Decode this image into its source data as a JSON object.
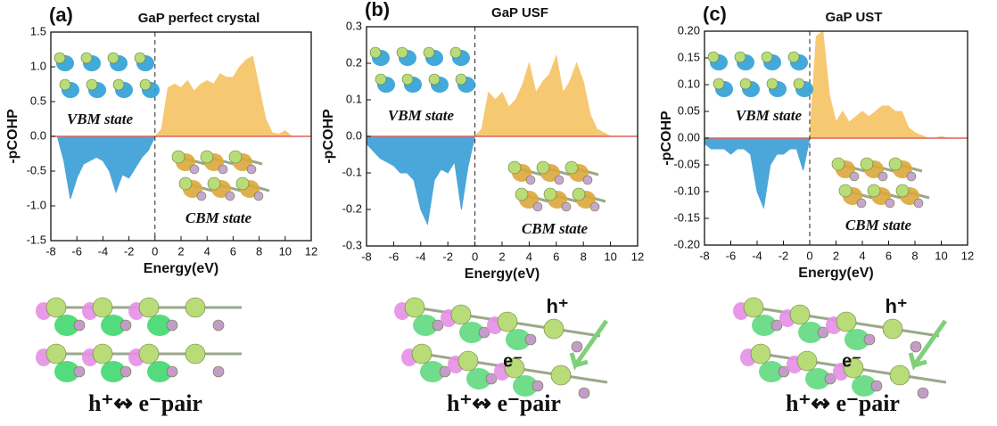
{
  "chart_data": [
    {
      "type": "area",
      "panel_label": "(a)",
      "title": "GaP perfect crystal",
      "xlabel": "Energy(eV)",
      "ylabel": "-pCOHP",
      "xlim": [
        -8,
        12
      ],
      "xticks": [
        -8,
        -6,
        -4,
        -2,
        0,
        2,
        4,
        6,
        8,
        10,
        12
      ],
      "ylim": [
        -1.5,
        1.5
      ],
      "yticks": [
        -1.5,
        {
          "value": -1,
          "label": "-1.0"
        },
        -0.5,
        {
          "value": 0,
          "label": "0.0"
        },
        0.5,
        {
          "value": 1,
          "label": "1.0"
        },
        1.5
      ],
      "x": [
        -8,
        -7.5,
        -7,
        -6.5,
        -6,
        -5.5,
        -5,
        -4.5,
        -4,
        -3.5,
        -3,
        -2.5,
        -2,
        -1.5,
        -1,
        -0.5,
        0,
        0.5,
        1,
        1.5,
        2,
        2.5,
        3,
        3.5,
        4,
        4.5,
        5,
        5.5,
        6,
        6.5,
        7,
        7.5,
        8,
        8.5,
        9,
        9.5,
        10,
        10.5,
        11,
        11.5,
        12
      ],
      "series": [
        {
          "color": "#4ba7d9",
          "values": [
            0,
            0,
            -0.35,
            -0.9,
            -0.6,
            -0.4,
            -0.35,
            -0.3,
            -0.35,
            -0.5,
            -0.8,
            -0.55,
            -0.6,
            -0.45,
            -0.3,
            -0.2,
            0,
            null,
            null,
            null,
            null,
            null,
            null,
            null,
            null,
            null,
            null,
            null,
            null,
            null,
            null,
            null,
            null,
            null,
            null,
            null,
            null,
            null,
            null,
            null,
            null
          ]
        },
        {
          "color": "#f6c872",
          "values": [
            null,
            null,
            null,
            null,
            null,
            null,
            null,
            null,
            null,
            null,
            null,
            null,
            null,
            null,
            null,
            null,
            0,
            0.1,
            0.7,
            0.75,
            0.7,
            0.8,
            0.65,
            0.75,
            0.8,
            0.75,
            0.9,
            0.85,
            0.85,
            1.0,
            1.1,
            1.15,
            0.7,
            0.25,
            0.05,
            0.03,
            0.08,
            0,
            0,
            0,
            0
          ]
        }
      ],
      "annotations": [
        "VBM state",
        "CBM state"
      ],
      "caption": "h⁺↭ e⁻pair"
    },
    {
      "type": "area",
      "panel_label": "(b)",
      "title": "GaP USF",
      "xlabel": "Energy(eV)",
      "ylabel": "-pCOHP",
      "xlim": [
        -8,
        12
      ],
      "xticks": [
        -8,
        -6,
        -4,
        -2,
        0,
        2,
        4,
        6,
        8,
        10,
        12
      ],
      "ylim": [
        -0.3,
        0.3
      ],
      "yticks": [
        -0.3,
        -0.2,
        -0.1,
        {
          "value": 0,
          "label": "0.0"
        },
        0.1,
        0.2,
        0.3
      ],
      "x": [
        -8,
        -7.5,
        -7,
        -6.5,
        -6,
        -5.5,
        -5,
        -4.5,
        -4,
        -3.5,
        -3,
        -2.5,
        -2,
        -1.5,
        -1,
        -0.5,
        0,
        0.5,
        1,
        1.5,
        2,
        2.5,
        3,
        3.5,
        4,
        4.5,
        5,
        5.5,
        6,
        6.5,
        7,
        7.5,
        8,
        8.5,
        9,
        9.5,
        10,
        10.5,
        11,
        11.5,
        12
      ],
      "series": [
        {
          "color": "#4ba7d9",
          "values": [
            -0.02,
            -0.04,
            -0.06,
            -0.07,
            -0.08,
            -0.1,
            -0.1,
            -0.12,
            -0.2,
            -0.24,
            -0.12,
            -0.09,
            -0.1,
            -0.07,
            -0.2,
            -0.08,
            0,
            null,
            null,
            null,
            null,
            null,
            null,
            null,
            null,
            null,
            null,
            null,
            null,
            null,
            null,
            null,
            null,
            null,
            null,
            null,
            null,
            null,
            null,
            null,
            null
          ]
        },
        {
          "color": "#f6c872",
          "values": [
            null,
            null,
            null,
            null,
            null,
            null,
            null,
            null,
            null,
            null,
            null,
            null,
            null,
            null,
            null,
            null,
            0,
            0.02,
            0.12,
            0.1,
            0.12,
            0.08,
            0.1,
            0.14,
            0.2,
            0.12,
            0.15,
            0.17,
            0.22,
            0.12,
            0.15,
            0.2,
            0.15,
            0.06,
            0.02,
            0.01,
            0,
            0,
            0,
            0,
            0
          ]
        }
      ],
      "annotations": [
        "VBM state",
        "CBM state"
      ],
      "structure_labels": [
        "h⁺",
        "e⁻"
      ],
      "caption": "h⁺↭ e⁻pair"
    },
    {
      "type": "area",
      "panel_label": "(c)",
      "title": "GaP UST",
      "xlabel": "Energy(eV)",
      "ylabel": "-pCOHP",
      "xlim": [
        -8,
        12
      ],
      "xticks": [
        -8,
        -6,
        -4,
        -2,
        0,
        2,
        4,
        6,
        8,
        10,
        12
      ],
      "ylim": [
        -0.2,
        0.2
      ],
      "yticks": [
        {
          "value": -0.2,
          "label": "-0.20"
        },
        -0.15,
        {
          "value": -0.1,
          "label": "-0.10"
        },
        -0.05,
        {
          "value": 0,
          "label": "0.00"
        },
        0.05,
        {
          "value": 0.1,
          "label": "0.10"
        },
        0.15,
        {
          "value": 0.2,
          "label": "0.20"
        }
      ],
      "x": [
        -8,
        -7.5,
        -7,
        -6.5,
        -6,
        -5.5,
        -5,
        -4.5,
        -4,
        -3.5,
        -3,
        -2.5,
        -2,
        -1.5,
        -1,
        -0.5,
        0,
        0.5,
        1,
        1.5,
        2,
        2.5,
        3,
        3.5,
        4,
        4.5,
        5,
        5.5,
        6,
        6.5,
        7,
        7.5,
        8,
        8.5,
        9,
        9.5,
        10,
        10.5,
        11,
        11.5,
        12
      ],
      "series": [
        {
          "color": "#4ba7d9",
          "values": [
            -0.01,
            -0.02,
            -0.02,
            -0.02,
            -0.03,
            -0.02,
            -0.02,
            -0.03,
            -0.1,
            -0.13,
            -0.05,
            -0.03,
            -0.03,
            -0.02,
            -0.02,
            -0.06,
            0,
            null,
            null,
            null,
            null,
            null,
            null,
            null,
            null,
            null,
            null,
            null,
            null,
            null,
            null,
            null,
            null,
            null,
            null,
            null,
            null,
            null,
            null,
            null,
            null
          ]
        },
        {
          "color": "#f6c872",
          "values": [
            null,
            null,
            null,
            null,
            null,
            null,
            null,
            null,
            null,
            null,
            null,
            null,
            null,
            null,
            null,
            null,
            0,
            0.19,
            0.2,
            0.08,
            0.03,
            0.05,
            0.03,
            0.04,
            0.05,
            0.04,
            0.05,
            0.06,
            0.06,
            0.05,
            0.05,
            0.02,
            0.01,
            0.005,
            0,
            0,
            0.003,
            0,
            0,
            0,
            0
          ]
        }
      ],
      "annotations": [
        "VBM state",
        "CBM state"
      ],
      "structure_labels": [
        "h⁺",
        "e⁻"
      ],
      "caption": "h⁺↭ e⁻pair"
    }
  ]
}
